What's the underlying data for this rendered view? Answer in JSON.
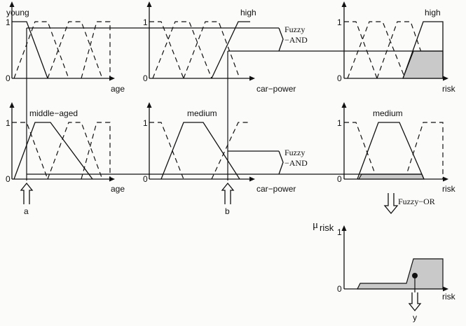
{
  "labels": {
    "young": "young",
    "high1": "high",
    "high_risk": "high",
    "middle_aged": "middle−aged",
    "medium1": "medium",
    "medium_risk": "medium",
    "age1": "age",
    "age2": "age",
    "carpower1": "car−power",
    "carpower2": "car−power",
    "risk1": "risk",
    "risk2": "risk",
    "risk3": "risk",
    "fuzzy_and_1a": "Fuzzy",
    "fuzzy_and_1b": "−AND",
    "fuzzy_and_2a": "Fuzzy",
    "fuzzy_and_2b": "−AND",
    "fuzzy_or": "Fuzzy−OR",
    "mu": "μ",
    "mu_sub": "risk",
    "input_a": "a",
    "input_b": "b",
    "output_y": "y",
    "one": "1",
    "zero": "0"
  }
}
